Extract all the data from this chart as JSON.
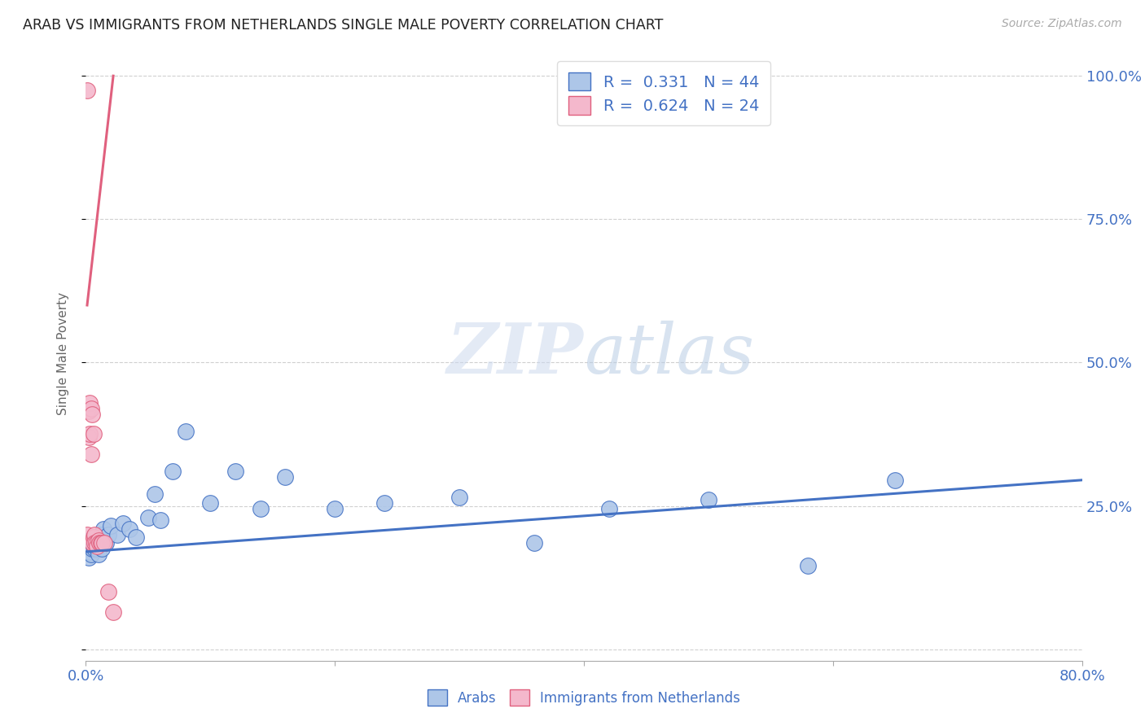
{
  "title": "ARAB VS IMMIGRANTS FROM NETHERLANDS SINGLE MALE POVERTY CORRELATION CHART",
  "source": "Source: ZipAtlas.com",
  "ylabel": "Single Male Poverty",
  "watermark1": "ZIP",
  "watermark2": "atlas",
  "arab_color": "#adc6e8",
  "netherlands_color": "#f4b8cc",
  "arab_line_color": "#4472c4",
  "netherlands_line_color": "#e0607e",
  "right_axis_color": "#4472c4",
  "xlim": [
    0.0,
    0.8
  ],
  "ylim": [
    -0.02,
    1.05
  ],
  "yticks": [
    0.0,
    0.25,
    0.5,
    0.75,
    1.0
  ],
  "ytick_labels": [
    "",
    "25.0%",
    "50.0%",
    "75.0%",
    "100.0%"
  ],
  "arab_x": [
    0.001,
    0.001,
    0.002,
    0.002,
    0.003,
    0.003,
    0.004,
    0.004,
    0.005,
    0.005,
    0.006,
    0.006,
    0.007,
    0.008,
    0.009,
    0.01,
    0.011,
    0.012,
    0.013,
    0.014,
    0.016,
    0.018,
    0.02,
    0.025,
    0.03,
    0.035,
    0.04,
    0.05,
    0.055,
    0.06,
    0.07,
    0.08,
    0.1,
    0.12,
    0.14,
    0.16,
    0.2,
    0.24,
    0.3,
    0.36,
    0.42,
    0.5,
    0.58,
    0.65
  ],
  "arab_y": [
    0.175,
    0.185,
    0.16,
    0.18,
    0.17,
    0.19,
    0.175,
    0.165,
    0.185,
    0.175,
    0.18,
    0.195,
    0.175,
    0.185,
    0.175,
    0.165,
    0.185,
    0.2,
    0.175,
    0.21,
    0.185,
    0.2,
    0.215,
    0.2,
    0.22,
    0.21,
    0.195,
    0.23,
    0.27,
    0.225,
    0.31,
    0.38,
    0.255,
    0.31,
    0.245,
    0.3,
    0.245,
    0.255,
    0.265,
    0.185,
    0.245,
    0.26,
    0.145,
    0.295
  ],
  "netherlands_x": [
    0.001,
    0.001,
    0.001,
    0.002,
    0.002,
    0.003,
    0.003,
    0.004,
    0.004,
    0.005,
    0.005,
    0.006,
    0.006,
    0.007,
    0.007,
    0.008,
    0.009,
    0.01,
    0.011,
    0.012,
    0.013,
    0.015,
    0.018,
    0.022
  ],
  "netherlands_y": [
    0.975,
    0.415,
    0.2,
    0.415,
    0.37,
    0.43,
    0.375,
    0.42,
    0.34,
    0.41,
    0.185,
    0.375,
    0.195,
    0.2,
    0.185,
    0.185,
    0.18,
    0.19,
    0.185,
    0.185,
    0.185,
    0.185,
    0.1,
    0.065
  ],
  "arab_trend_x": [
    0.0,
    0.8
  ],
  "arab_trend_y": [
    0.17,
    0.295
  ],
  "neth_trend_x": [
    0.001,
    0.022
  ],
  "neth_trend_y": [
    0.6,
    1.0
  ],
  "legend_items": [
    {
      "label": "R =  0.331   N = 44",
      "fc": "#adc6e8",
      "ec": "#4472c4"
    },
    {
      "label": "R =  0.624   N = 24",
      "fc": "#f4b8cc",
      "ec": "#e0607e"
    }
  ],
  "bottom_legend": [
    {
      "label": "Arabs",
      "fc": "#adc6e8",
      "ec": "#4472c4"
    },
    {
      "label": "Immigrants from Netherlands",
      "fc": "#f4b8cc",
      "ec": "#e0607e"
    }
  ]
}
